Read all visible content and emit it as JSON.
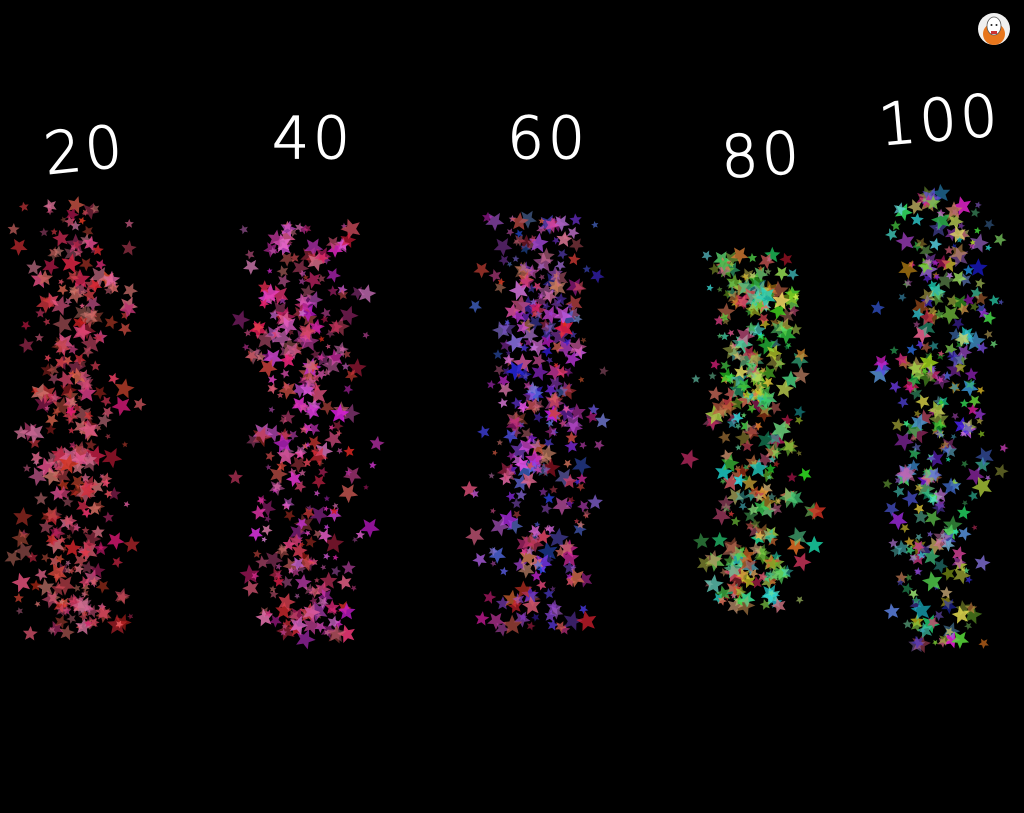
{
  "labels": [
    "20",
    "40",
    "60",
    "80",
    "100"
  ]
}
